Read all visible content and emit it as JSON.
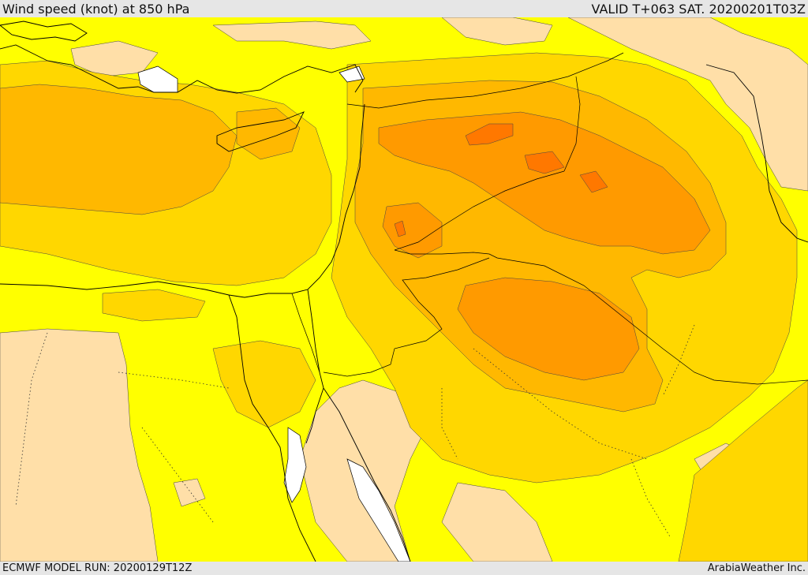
{
  "header": {
    "title": "Wind speed (knot) at 850 hPa",
    "valid_time": "VALID T+063 SAT. 20200201T03Z"
  },
  "footer": {
    "model_run": "ECMWF MODEL RUN: 20200129T12Z",
    "brand": "ArabiaWeather Inc."
  },
  "colors": {
    "band_0": "#ffdfa8",
    "band_1": "#ffff00",
    "band_2": "#ffd700",
    "band_3": "#ffb800",
    "band_4": "#ff9a00",
    "band_5": "#ff7800",
    "water_white": "#ffffff",
    "coastline": "#000000",
    "frame_gray": "#e6e6e6"
  }
}
